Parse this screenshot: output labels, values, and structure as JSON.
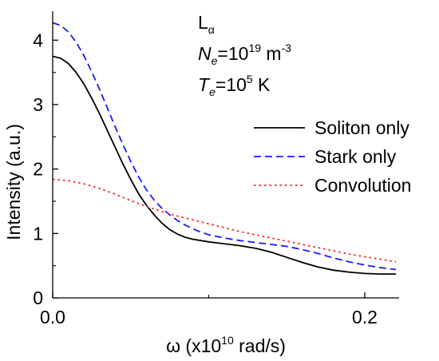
{
  "chart_data": {
    "type": "line",
    "xlabel": "ω (x10",
    "xlabel_exp": "10",
    "xlabel_tail": " rad/s)",
    "ylabel": "Intensity (a.u.)",
    "xlim": [
      0.0,
      0.222
    ],
    "ylim": [
      0,
      4.45
    ],
    "xticks": [
      {
        "value": 0.0,
        "label": "0.0"
      },
      {
        "value": 0.2,
        "label": "0.2"
      }
    ],
    "xminor": [
      0.1
    ],
    "yticks": [
      {
        "value": 0,
        "label": "0"
      },
      {
        "value": 1,
        "label": "1"
      },
      {
        "value": 2,
        "label": "2"
      },
      {
        "value": 3,
        "label": "3"
      },
      {
        "value": 4,
        "label": "4"
      }
    ],
    "yminor": [
      0.5,
      1.5,
      2.5,
      3.5
    ],
    "grid": false,
    "legend_position": "right",
    "series": [
      {
        "name": "Soliton only",
        "color": "#000000",
        "dash": "solid",
        "x": [
          0.0,
          0.005,
          0.01,
          0.015,
          0.02,
          0.025,
          0.03,
          0.035,
          0.04,
          0.045,
          0.05,
          0.055,
          0.06,
          0.065,
          0.07,
          0.075,
          0.08,
          0.085,
          0.09,
          0.095,
          0.1,
          0.11,
          0.12,
          0.13,
          0.14,
          0.15,
          0.16,
          0.17,
          0.18,
          0.19,
          0.2,
          0.21,
          0.22
        ],
        "y": [
          3.75,
          3.72,
          3.64,
          3.5,
          3.32,
          3.1,
          2.86,
          2.6,
          2.34,
          2.08,
          1.84,
          1.62,
          1.44,
          1.29,
          1.16,
          1.06,
          0.99,
          0.94,
          0.91,
          0.89,
          0.87,
          0.84,
          0.81,
          0.77,
          0.71,
          0.63,
          0.55,
          0.48,
          0.43,
          0.4,
          0.38,
          0.37,
          0.37
        ]
      },
      {
        "name": "Stark only",
        "color": "#1a1aff",
        "dash": "dashed",
        "x": [
          0.0,
          0.005,
          0.01,
          0.015,
          0.02,
          0.025,
          0.03,
          0.035,
          0.04,
          0.045,
          0.05,
          0.055,
          0.06,
          0.065,
          0.07,
          0.075,
          0.08,
          0.085,
          0.09,
          0.095,
          0.1,
          0.11,
          0.12,
          0.13,
          0.14,
          0.15,
          0.16,
          0.17,
          0.18,
          0.19,
          0.2,
          0.21,
          0.22
        ],
        "y": [
          4.27,
          4.23,
          4.13,
          3.97,
          3.76,
          3.51,
          3.24,
          2.95,
          2.66,
          2.38,
          2.12,
          1.88,
          1.68,
          1.52,
          1.39,
          1.29,
          1.2,
          1.13,
          1.07,
          1.02,
          0.98,
          0.93,
          0.89,
          0.86,
          0.83,
          0.8,
          0.75,
          0.69,
          0.62,
          0.56,
          0.51,
          0.47,
          0.44
        ]
      },
      {
        "name": "Convolution",
        "color": "#ff2020",
        "dash": "dotted",
        "x": [
          0.0,
          0.01,
          0.02,
          0.03,
          0.04,
          0.05,
          0.06,
          0.07,
          0.08,
          0.09,
          0.1,
          0.11,
          0.12,
          0.13,
          0.14,
          0.15,
          0.16,
          0.17,
          0.18,
          0.19,
          0.2,
          0.21,
          0.22
        ],
        "y": [
          1.84,
          1.82,
          1.77,
          1.7,
          1.61,
          1.51,
          1.42,
          1.34,
          1.27,
          1.21,
          1.15,
          1.09,
          1.03,
          0.98,
          0.93,
          0.88,
          0.83,
          0.78,
          0.73,
          0.68,
          0.64,
          0.6,
          0.56
        ]
      }
    ],
    "annotations": {
      "line_symbol": "L",
      "line_sub": "α",
      "ne_symbol": "N",
      "ne_sub": "e",
      "ne_eq": "=10",
      "ne_exp": "19",
      "ne_unit": " m",
      "ne_unit_exp": "-3",
      "te_symbol": "T",
      "te_sub": "e",
      "te_eq": "=10",
      "te_exp": "5",
      "te_unit": " K"
    }
  }
}
